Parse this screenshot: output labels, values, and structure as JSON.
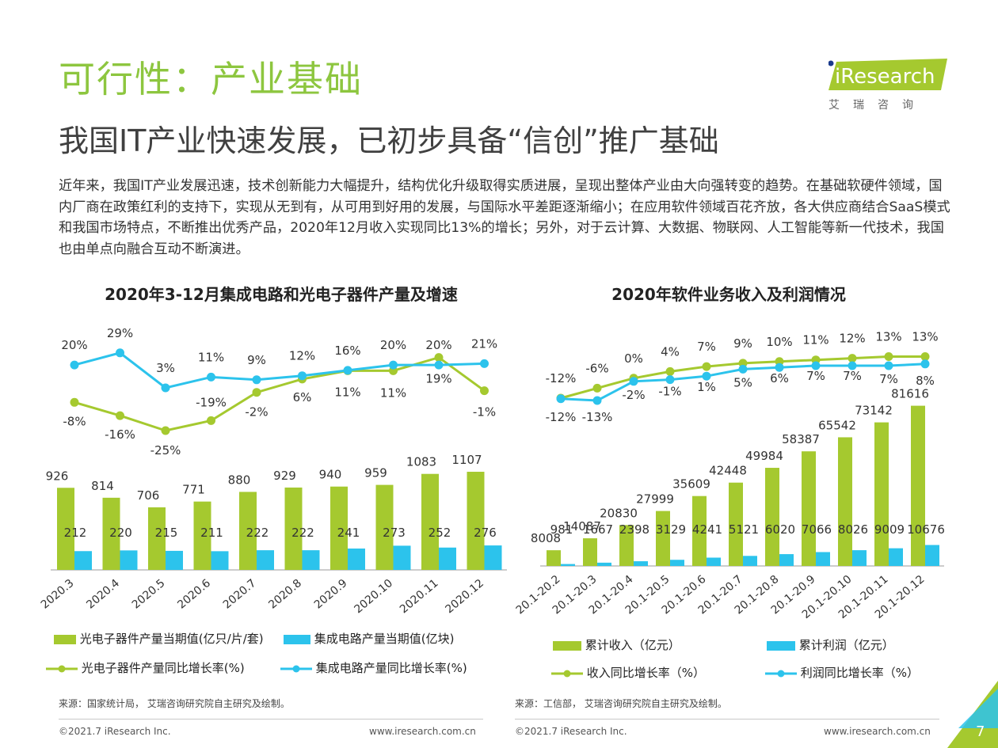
{
  "header": {
    "title": "可行性：产业基础",
    "subtitle": "我国IT产业快速发展，已初步具备“信创”推广基础",
    "logo_main": "iResearch",
    "logo_sub": "艾瑞咨询"
  },
  "intro": "近年来，我国IT产业发展迅速，技术创新能力大幅提升，结构优化升级取得实质进展，呈现出整体产业由大向强转变的趋势。在基础软硬件领域，国内厂商在政策红利的支持下，实现从无到有，从可用到好用的发展，与国际水平差距逐渐缩小；在应用软件领域百花齐放，各大供应商结合SaaS模式和我国市场特点，不断推出优秀产品，2020年12月收入实现同比13%的增长；另外，对于云计算、大数据、物联网、人工智能等新一代技术，我国也由单点向融合互动不断演进。",
  "colors": {
    "green": "#a5c92f",
    "green_line": "#a5c92f",
    "blue": "#2cc3ec",
    "blue_line": "#2cc3ec",
    "title_green": "#8dc63f"
  },
  "chart_data": [
    {
      "type": "bar",
      "title": "2020年3-12月集成电路和光电子器件产量及增速",
      "categories": [
        "2020.3",
        "2020.4",
        "2020.5",
        "2020.6",
        "2020.7",
        "2020.8",
        "2020.9",
        "2020.10",
        "2020.11",
        "2020.12"
      ],
      "series": [
        {
          "name": "光电子器件产量当期值(亿只/片/套)",
          "kind": "bar",
          "values": [
            926,
            814,
            706,
            771,
            880,
            929,
            940,
            959,
            1083,
            1107
          ]
        },
        {
          "name": "集成电路产量当期值(亿块)",
          "kind": "bar",
          "values": [
            212,
            220,
            215,
            211,
            222,
            222,
            241,
            273,
            252,
            276
          ]
        },
        {
          "name": "光电子器件产量同比增长率(%)",
          "kind": "line",
          "values": [
            -8,
            -16,
            -25,
            -19,
            -2,
            6,
            11,
            11,
            19,
            -1
          ],
          "labels": [
            "-8%",
            "-16%",
            "-25%",
            "-19%",
            "-2%",
            "6%",
            "11%",
            "11%",
            "19%",
            "-1%"
          ]
        },
        {
          "name": "集成电路产量同比增长率(%)",
          "kind": "line",
          "values": [
            20,
            29,
            3,
            11,
            9,
            12,
            16,
            20,
            20,
            21
          ],
          "labels": [
            "20%",
            "29%",
            "3%",
            "11%",
            "9%",
            "12%",
            "16%",
            "20%",
            "20%",
            "21%"
          ]
        }
      ],
      "source": "来源：国家统计局， 艾瑞咨询研究院自主研究及绘制。"
    },
    {
      "type": "bar",
      "title": "2020年软件业务收入及利润情况",
      "categories": [
        "20.1-20.2",
        "20.1-20.3",
        "20.1-20.4",
        "20.1-20.5",
        "20.1-20.6",
        "20.1-20.7",
        "20.1-20.8",
        "20.1-20.9",
        "20.1-20.10",
        "20.1-20.11",
        "20.1-20.12"
      ],
      "series": [
        {
          "name": "累计收入（亿元）",
          "kind": "bar",
          "values": [
            8008,
            14087,
            20830,
            27999,
            35609,
            42448,
            49984,
            58387,
            65542,
            73142,
            81616
          ]
        },
        {
          "name": "累计利润（亿元）",
          "kind": "bar",
          "values": [
            981,
            1667,
            2398,
            3129,
            4241,
            5121,
            6020,
            7066,
            8026,
            9009,
            10676
          ]
        },
        {
          "name": "收入同比增长率（%）",
          "kind": "line",
          "values": [
            -12,
            -6,
            0,
            4,
            7,
            9,
            10,
            11,
            12,
            13,
            13
          ],
          "labels": [
            "-12%",
            "-6%",
            "0%",
            "4%",
            "7%",
            "9%",
            "10%",
            "11%",
            "12%",
            "13%",
            "13%"
          ]
        },
        {
          "name": "利润同比增长率（%）",
          "kind": "line",
          "values": [
            -12,
            -13,
            -2,
            -1,
            1,
            5,
            6,
            7,
            7,
            7,
            8
          ],
          "labels": [
            "-12%",
            "-13%",
            "-2%",
            "-1%",
            "1%",
            "5%",
            "6%",
            "7%",
            "7%",
            "7%",
            "8%"
          ]
        }
      ],
      "source": "来源：工信部， 艾瑞咨询研究院自主研究及绘制。"
    }
  ],
  "footer": {
    "left_copyright": "©2021.7 iResearch Inc.",
    "left_url": "www.iresearch.com.cn",
    "right_copyright": "©2021.7 iResearch Inc.",
    "right_url": "www.iresearch.com.cn",
    "page_number": "7"
  }
}
